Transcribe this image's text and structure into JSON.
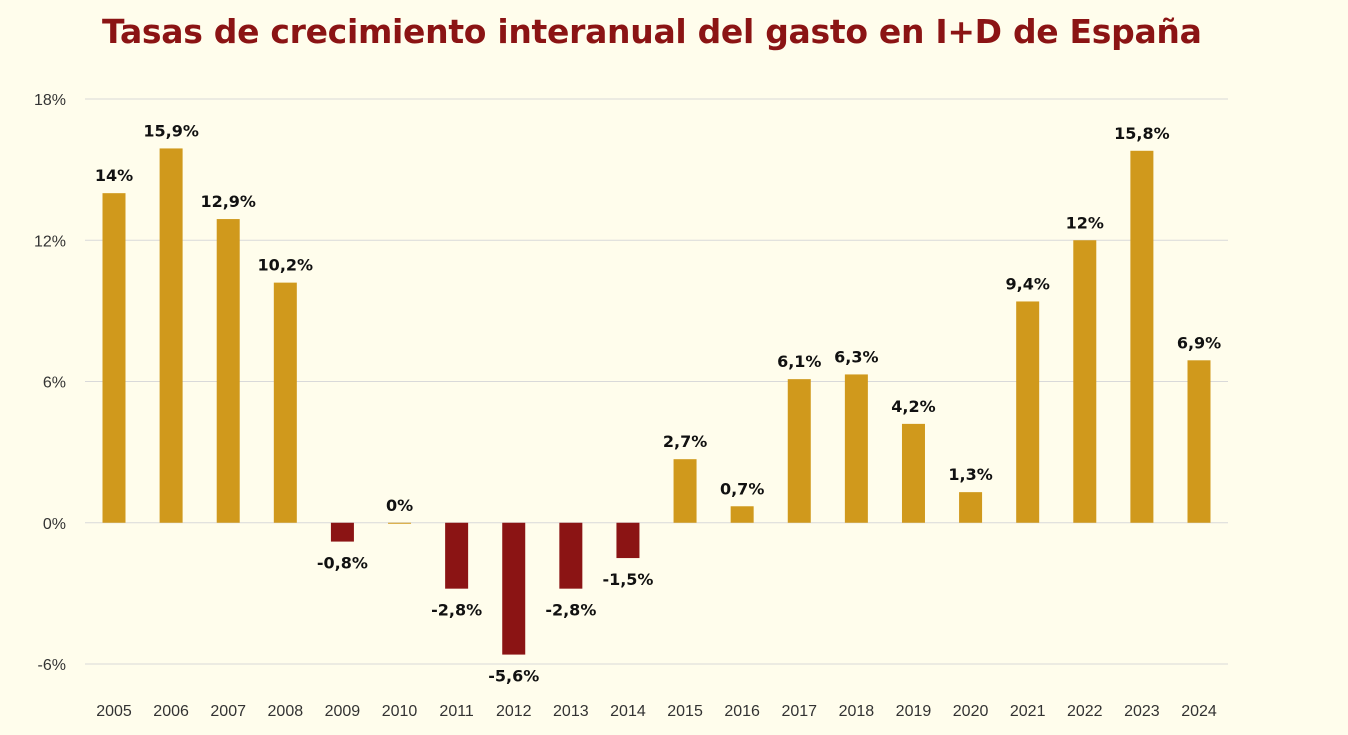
{
  "chart_data": {
    "type": "bar",
    "title": "Tasas de crecimiento interanual del gasto en I+D de España",
    "categories": [
      "2005",
      "2006",
      "2007",
      "2008",
      "2009",
      "2010",
      "2011",
      "2012",
      "2013",
      "2014",
      "2015",
      "2016",
      "2017",
      "2018",
      "2019",
      "2020",
      "2021",
      "2022",
      "2023",
      "2024"
    ],
    "values": [
      14,
      15.9,
      12.9,
      10.2,
      -0.8,
      0,
      -2.8,
      -5.6,
      -2.8,
      -1.5,
      2.7,
      0.7,
      6.1,
      6.3,
      4.2,
      1.3,
      9.4,
      12,
      15.8,
      6.9
    ],
    "data_labels": [
      "14%",
      "15,9%",
      "12,9%",
      "10,2%",
      "-0,8%",
      "0%",
      "-2,8%",
      "-5,6%",
      "-2,8%",
      "-1,5%",
      "2,7%",
      "0,7%",
      "6,1%",
      "6,3%",
      "4,2%",
      "1,3%",
      "9,4%",
      "12%",
      "15,8%",
      "6,9%"
    ],
    "y_ticks": [
      -6,
      0,
      6,
      12,
      18
    ],
    "y_tick_labels": [
      "-6%",
      "0%",
      "6%",
      "12%",
      "18%"
    ],
    "ylim": [
      -6,
      18
    ],
    "grid": true,
    "legend": "none",
    "xlabel": "",
    "ylabel": "",
    "colors": {
      "positive": "#d0991c",
      "negative": "#8b1414",
      "title": "#8b1414",
      "background": "#fffdec"
    }
  }
}
